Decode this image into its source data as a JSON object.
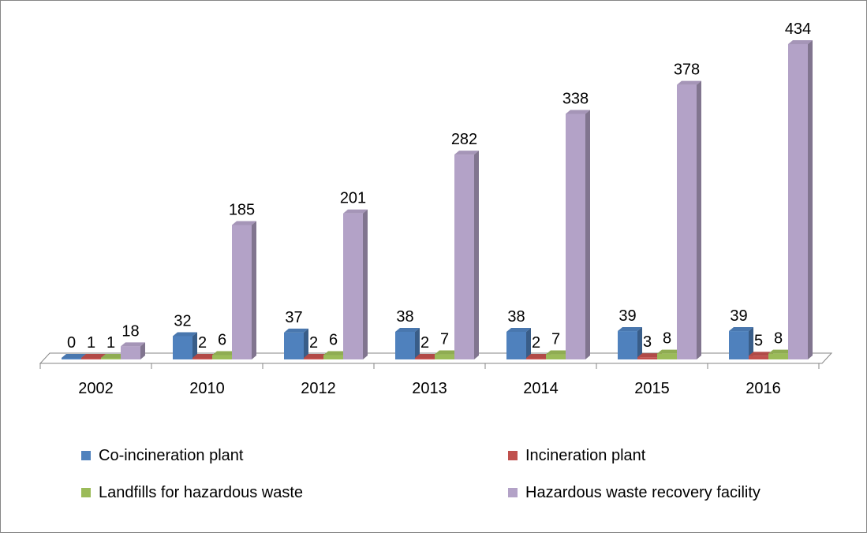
{
  "chart_data": {
    "type": "bar",
    "style": "3d-clustered-column",
    "title": "",
    "xlabel": "",
    "ylabel": "",
    "categories": [
      "2002",
      "2010",
      "2012",
      "2013",
      "2014",
      "2015",
      "2016"
    ],
    "series": [
      {
        "name": "Co-incineration plant",
        "color": "#4F81BD",
        "values": [
          0,
          32,
          37,
          38,
          38,
          39,
          39
        ]
      },
      {
        "name": "Incineration plant",
        "color": "#C0504D",
        "values": [
          1,
          2,
          2,
          2,
          2,
          3,
          5
        ]
      },
      {
        "name": "Landfills for hazardous waste",
        "color": "#9BBB59",
        "values": [
          1,
          6,
          6,
          7,
          7,
          8,
          8
        ]
      },
      {
        "name": "Hazardous waste recovery facility",
        "color": "#B3A2C7",
        "values": [
          18,
          185,
          201,
          282,
          338,
          378,
          434
        ]
      }
    ],
    "data_labels": true,
    "grid": false,
    "legend_position": "bottom",
    "ylim": [
      0,
      434
    ]
  }
}
